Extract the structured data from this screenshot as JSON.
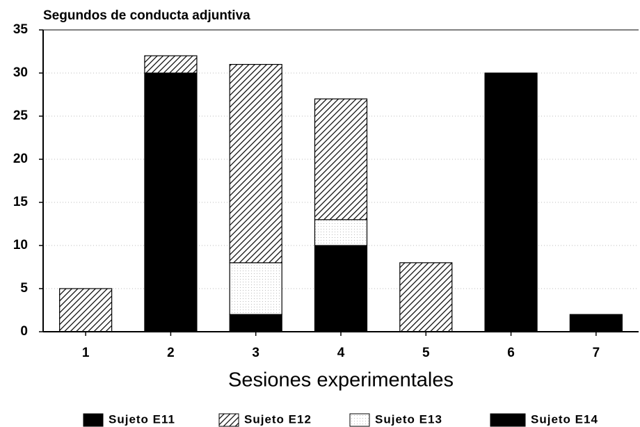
{
  "chart_data": {
    "type": "stacked_bar",
    "title": "Segundos de conducta adjuntiva",
    "x_label": "Sesiones experimentales",
    "categories": [
      "1",
      "2",
      "3",
      "4",
      "5",
      "6",
      "7"
    ],
    "series": [
      {
        "name": "Sujeto E11",
        "color": "#000000",
        "values": [
          0,
          30,
          2,
          10,
          0,
          0,
          0
        ]
      },
      {
        "name": "Sujeto E13",
        "color": "#ffffff",
        "pattern": "dots",
        "values": [
          0,
          0,
          6,
          3,
          0,
          0,
          0
        ]
      },
      {
        "name": "Sujeto E12",
        "color": "#000000",
        "pattern": "hatch",
        "values": [
          5,
          2,
          23,
          14,
          8,
          0,
          0
        ]
      },
      {
        "name": "Sujeto E14",
        "color": "#000000",
        "values": [
          0,
          0,
          0,
          0,
          0,
          30,
          2
        ]
      }
    ],
    "legend_order": [
      0,
      2,
      1,
      3
    ],
    "ylim": [
      0,
      35
    ],
    "yticks": [
      0,
      5,
      10,
      15,
      20,
      25,
      30,
      35
    ],
    "grid": true,
    "legend": "bottom"
  }
}
